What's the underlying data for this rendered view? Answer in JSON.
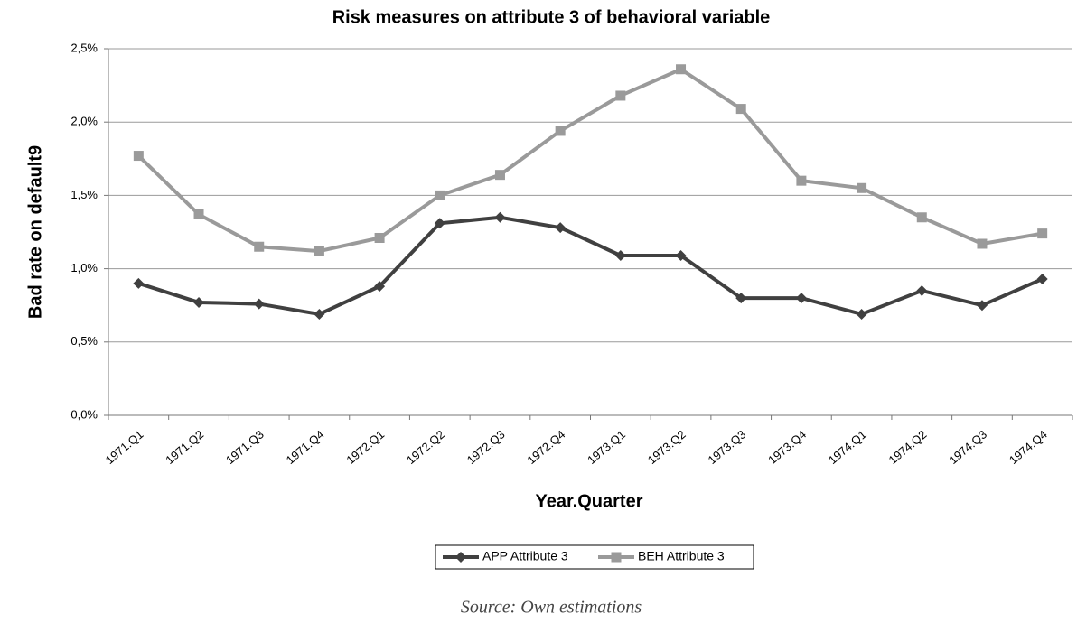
{
  "chart_data": {
    "type": "line",
    "title": "Risk measures on attribute 3 of behavioral variable",
    "x_label": "Year.Quarter",
    "y_label": "Bad rate on default9",
    "source": "Source: Own estimations",
    "categories": [
      "1971.Q1",
      "1971.Q2",
      "1971.Q3",
      "1971.Q4",
      "1972.Q1",
      "1972.Q2",
      "1972.Q3",
      "1972.Q4",
      "1973.Q1",
      "1973.Q2",
      "1973.Q3",
      "1973.Q4",
      "1974.Q1",
      "1974.Q2",
      "1974.Q3",
      "1974.Q4"
    ],
    "series": [
      {
        "name": "APP Attribute 3",
        "color": "#404040",
        "marker": "diamond",
        "values": [
          0.9,
          0.77,
          0.76,
          0.69,
          0.88,
          1.31,
          1.35,
          1.28,
          1.09,
          1.09,
          0.8,
          0.8,
          0.69,
          0.85,
          0.75,
          0.93
        ]
      },
      {
        "name": "BEH Attribute 3",
        "color": "#9a9a9a",
        "marker": "square",
        "values": [
          1.77,
          1.37,
          1.15,
          1.12,
          1.21,
          1.5,
          1.64,
          1.94,
          2.18,
          2.36,
          2.09,
          1.6,
          1.55,
          1.35,
          1.17,
          1.24
        ]
      }
    ],
    "ylim": [
      0,
      2.5
    ],
    "yticks": [
      {
        "value": 0,
        "label": "0,0%"
      },
      {
        "value": 0.5,
        "label": "0,5%"
      },
      {
        "value": 1.0,
        "label": "1,0%"
      },
      {
        "value": 1.5,
        "label": "1,5%"
      },
      {
        "value": 2.0,
        "label": "2,0%"
      },
      {
        "value": 2.5,
        "label": "2,5%"
      }
    ],
    "grid": true,
    "legend": "bottom"
  }
}
